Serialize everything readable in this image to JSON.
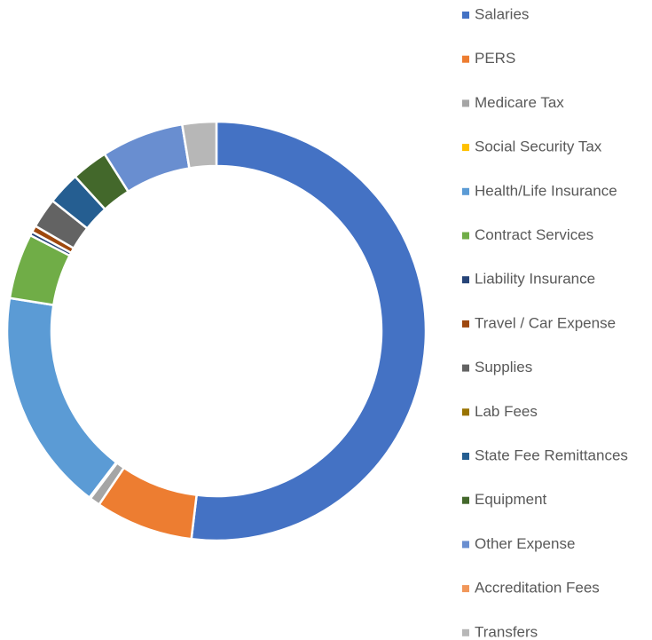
{
  "chart_data": {
    "type": "donut",
    "categories": [
      "Salaries",
      "PERS",
      "Medicare Tax",
      "Social Security Tax",
      "Health/Life Insurance",
      "Contract Services",
      "Liability Insurance",
      "Travel / Car Expense",
      "Supplies",
      "Lab Fees",
      "State Fee Remittances",
      "Equipment",
      "Other Expense",
      "Accreditation Fees",
      "Transfers"
    ],
    "values": [
      51.5,
      7.5,
      0.8,
      0.1,
      17,
      5,
      0.3,
      0.5,
      2.3,
      0,
      2.5,
      2.8,
      6.3,
      0,
      2.6
    ],
    "colors": [
      "#4472c4",
      "#ed7d31",
      "#a5a5a5",
      "#ffc000",
      "#5b9bd5",
      "#70ad47",
      "#264478",
      "#9e480e",
      "#636363",
      "#997300",
      "#255e91",
      "#43682b",
      "#698ed0",
      "#f1975a",
      "#b7b7b7"
    ],
    "legend": "right"
  }
}
